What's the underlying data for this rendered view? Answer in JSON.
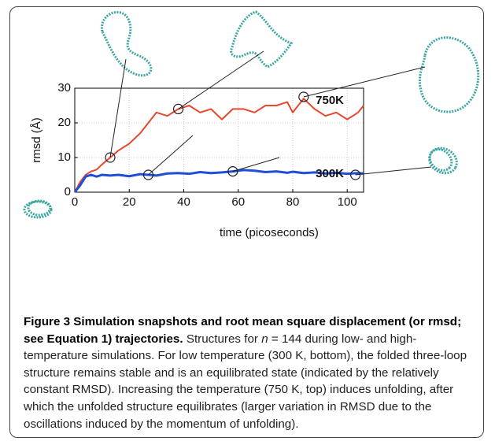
{
  "chart_data": {
    "type": "line",
    "xlabel": "time (picoseconds)",
    "ylabel": "rmsd (Å)",
    "xlim": [
      0,
      106
    ],
    "ylim": [
      0,
      30
    ],
    "xticks": [
      0,
      20,
      40,
      60,
      80,
      100
    ],
    "yticks": [
      0,
      10,
      20,
      30
    ],
    "grid": true,
    "x": [
      0,
      2,
      4,
      6,
      8,
      10,
      13,
      16,
      20,
      24,
      27,
      30,
      34,
      38,
      42,
      46,
      50,
      54,
      58,
      62,
      66,
      70,
      74,
      78,
      80,
      84,
      88,
      92,
      96,
      100,
      104,
      106
    ],
    "series": [
      {
        "name": "750K",
        "color": "#e8472e",
        "values": [
          0,
          3,
          5,
          6,
          6.5,
          8,
          10,
          12,
          14,
          17,
          20,
          23,
          22,
          24,
          25,
          23,
          24,
          21,
          24,
          24,
          23,
          25,
          25,
          26,
          23,
          27,
          24,
          22,
          23,
          21,
          23,
          25
        ]
      },
      {
        "name": "300K",
        "color": "#1f4fd6",
        "values": [
          0,
          2,
          4.5,
          5,
          4.5,
          5,
          4.8,
          5,
          4.6,
          5.2,
          5,
          4.8,
          5.4,
          5.5,
          5.3,
          5.8,
          5.5,
          5.7,
          6,
          6.4,
          6.2,
          5.8,
          6,
          5.6,
          5.9,
          5.5,
          5.7,
          5.4,
          5.6,
          5.3,
          5.5,
          5.4
        ]
      }
    ],
    "snapshots": {
      "x": [
        13,
        38,
        84,
        27,
        58,
        103
      ],
      "y": [
        10,
        24,
        27.5,
        5,
        6,
        5
      ]
    }
  },
  "caption": {
    "title": "Figure 3 Simulation snapshots and root mean square displacement (or rmsd; see Equation 1) trajectories.",
    "text": [
      "Structures for ",
      "n",
      " = 144 during low- and high-temperature simulations. For low temperature (300 K, bottom), the folded three-loop structure remains stable and is an equilibrated state (indicated by the relatively constant RMSD). Increasing the temperature (750 K, top) induces unfolding, after which the unfolded structure equilibrates (larger variation in RMSD due to the oscillations induced by the momentum of unfolding)."
    ]
  }
}
